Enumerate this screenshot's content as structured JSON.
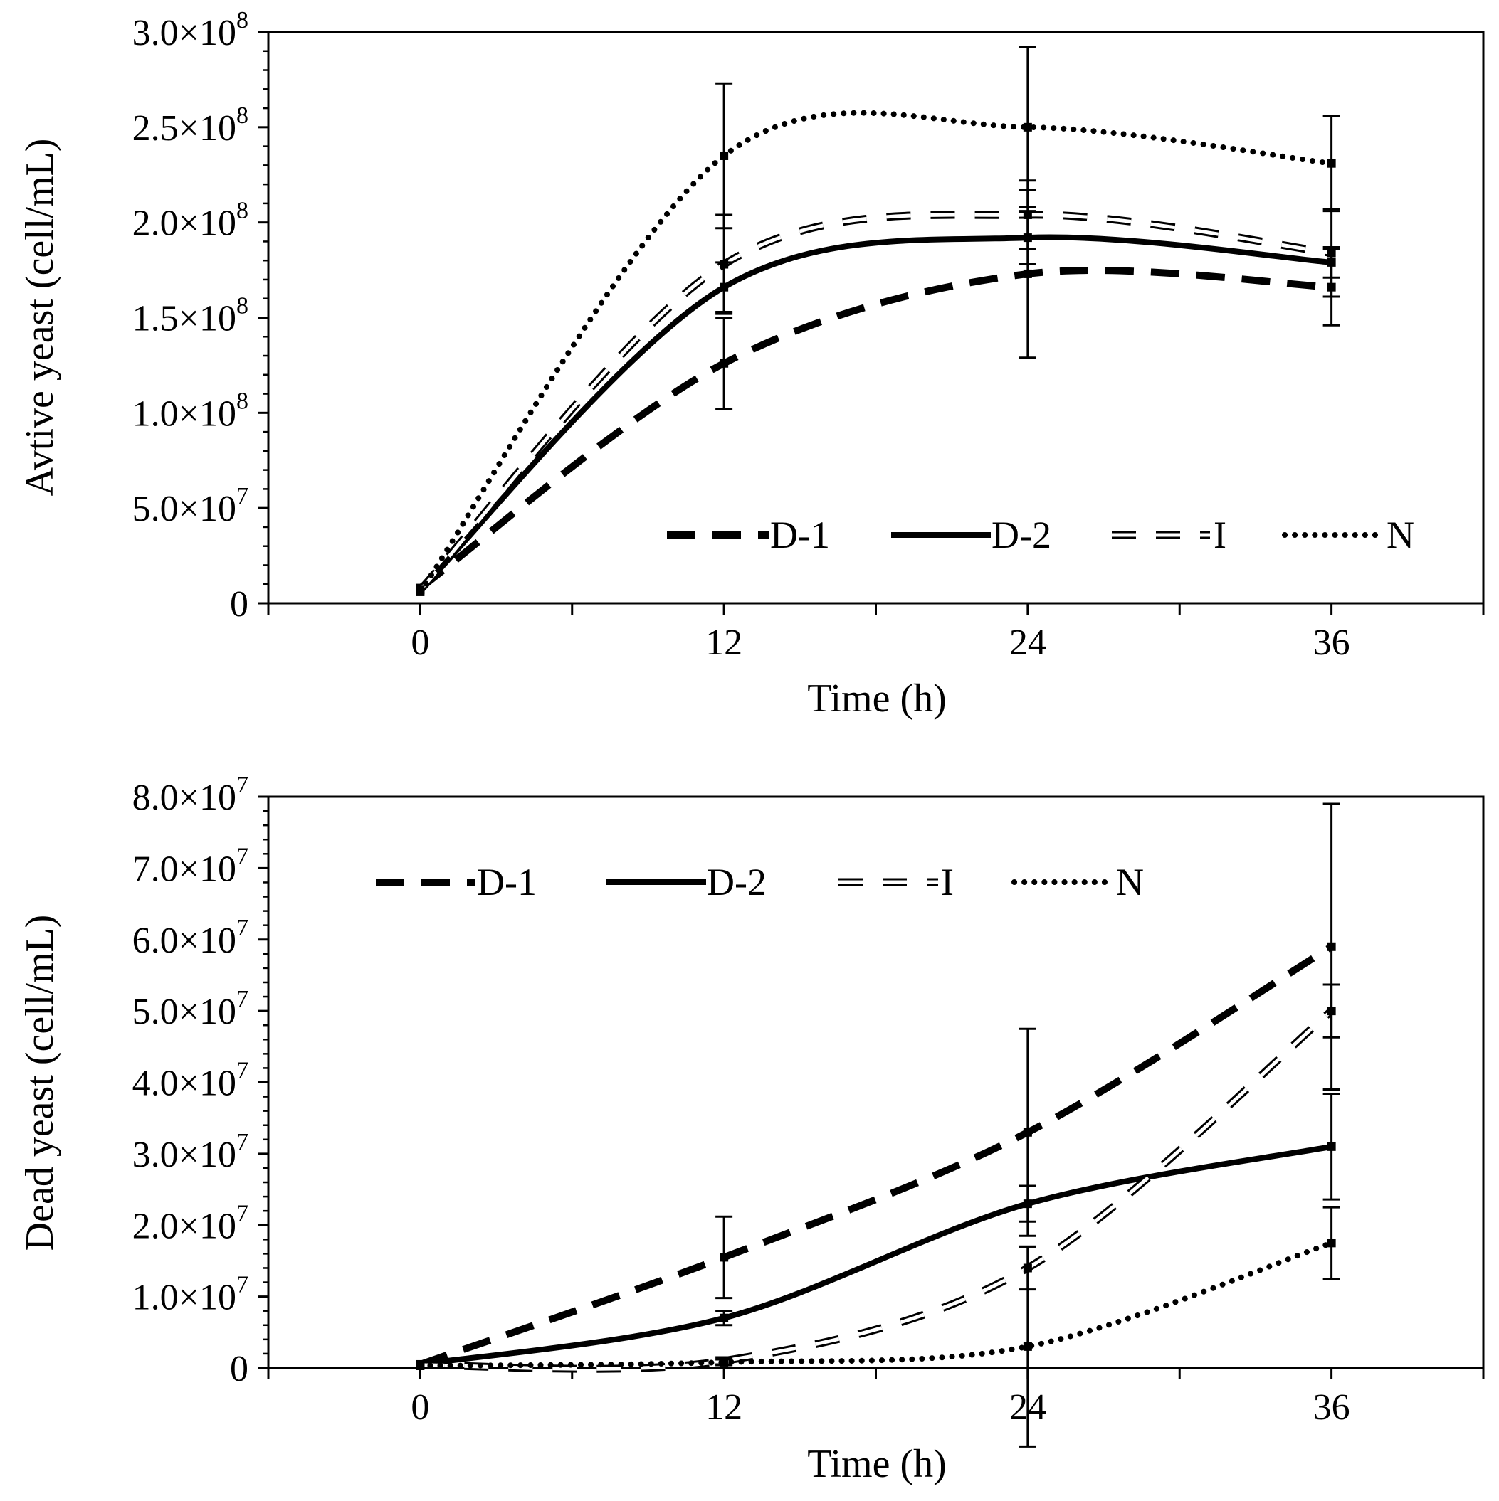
{
  "line_color": "#000000",
  "chart_data": [
    {
      "id": "active",
      "type": "line",
      "title": "",
      "xlabel": "Time (h)",
      "ylabel": "Avtive yeast (cell/mL)",
      "x": [
        0,
        12,
        24,
        36
      ],
      "xlim": [
        -6,
        42
      ],
      "ylim": [
        0,
        300000000
      ],
      "x_ticks": [
        0,
        12,
        24,
        36
      ],
      "x_tick_labels": [
        "0",
        "12",
        "24",
        "36"
      ],
      "y_ticks": [
        {
          "value": 0,
          "mantissa": "0",
          "exponent": ""
        },
        {
          "value": 50000000,
          "mantissa": "5.0×10",
          "exponent": "7"
        },
        {
          "value": 100000000,
          "mantissa": "1.0×10",
          "exponent": "8"
        },
        {
          "value": 150000000,
          "mantissa": "1.5×10",
          "exponent": "8"
        },
        {
          "value": 200000000,
          "mantissa": "2.0×10",
          "exponent": "8"
        },
        {
          "value": 250000000,
          "mantissa": "2.5×10",
          "exponent": "8"
        },
        {
          "value": 300000000,
          "mantissa": "3.0×10",
          "exponent": "8"
        }
      ],
      "legend_position": "bottom-right",
      "series": [
        {
          "name": "D-1",
          "style": "dash",
          "values": [
            8000000,
            126000000,
            173000000,
            166000000
          ],
          "errors": [
            0,
            24000000,
            44000000,
            20000000
          ]
        },
        {
          "name": "D-2",
          "style": "solid",
          "values": [
            7000000,
            166000000,
            192000000,
            179000000
          ],
          "errors": [
            0,
            13000000,
            14000000,
            8000000
          ]
        },
        {
          "name": "I",
          "style": "double",
          "values": [
            7000000,
            178000000,
            204000000,
            184000000
          ],
          "errors": [
            0,
            26000000,
            18000000,
            23000000
          ]
        },
        {
          "name": "N",
          "style": "dot",
          "values": [
            6000000,
            235000000,
            250000000,
            231000000
          ],
          "errors": [
            0,
            38000000,
            42000000,
            25000000
          ]
        }
      ]
    },
    {
      "id": "dead",
      "type": "line",
      "title": "",
      "xlabel": "Time (h)",
      "ylabel": "Dead yeast (cell/mL)",
      "x": [
        0,
        12,
        24,
        36
      ],
      "xlim": [
        -6,
        42
      ],
      "ylim": [
        0,
        80000000
      ],
      "x_ticks": [
        0,
        12,
        24,
        36
      ],
      "x_tick_labels": [
        "0",
        "12",
        "24",
        "36"
      ],
      "y_ticks": [
        {
          "value": 0,
          "mantissa": "0",
          "exponent": ""
        },
        {
          "value": 10000000,
          "mantissa": "1.0×10",
          "exponent": "7"
        },
        {
          "value": 20000000,
          "mantissa": "2.0×10",
          "exponent": "7"
        },
        {
          "value": 30000000,
          "mantissa": "3.0×10",
          "exponent": "7"
        },
        {
          "value": 40000000,
          "mantissa": "4.0×10",
          "exponent": "7"
        },
        {
          "value": 50000000,
          "mantissa": "5.0×10",
          "exponent": "7"
        },
        {
          "value": 60000000,
          "mantissa": "6.0×10",
          "exponent": "7"
        },
        {
          "value": 70000000,
          "mantissa": "7.0×10",
          "exponent": "7"
        },
        {
          "value": 80000000,
          "mantissa": "8.0×10",
          "exponent": "7"
        }
      ],
      "legend_position": "top-left",
      "series": [
        {
          "name": "D-1",
          "style": "dash",
          "values": [
            500000,
            15500000,
            33000000,
            59000000
          ],
          "errors": [
            0,
            5700000,
            14500000,
            20000000
          ]
        },
        {
          "name": "D-2",
          "style": "solid",
          "values": [
            500000,
            7000000,
            23000000,
            31000000
          ],
          "errors": [
            0,
            1000000,
            2500000,
            7400000
          ]
        },
        {
          "name": "I",
          "style": "double",
          "values": [
            400000,
            1000000,
            14000000,
            50000000
          ],
          "errors": [
            0,
            500000,
            3000000,
            3700000
          ]
        },
        {
          "name": "N",
          "style": "dot",
          "values": [
            300000,
            800000,
            3000000,
            17500000
          ],
          "errors": [
            0,
            400000,
            14000000,
            5000000
          ]
        }
      ]
    }
  ]
}
